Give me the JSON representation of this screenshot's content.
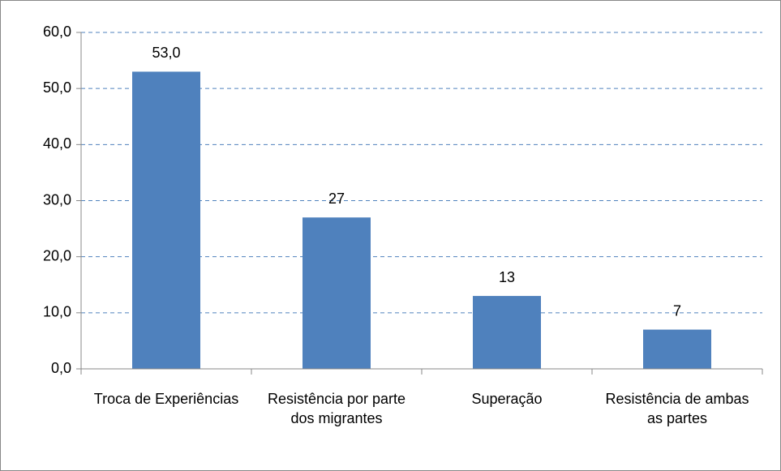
{
  "chart_data": {
    "type": "bar",
    "categories": [
      "Troca de Experiências",
      "Resistência por parte dos migrantes",
      "Superação",
      "Resistência de ambas as partes"
    ],
    "values": [
      53,
      27,
      13,
      7
    ],
    "value_labels": [
      "53,0",
      "27",
      "13",
      "7"
    ],
    "color": "#4f81bd",
    "ylim": [
      0,
      60
    ],
    "yticks": [
      {
        "value": 0,
        "label": "0,0"
      },
      {
        "value": 10,
        "label": "10,0"
      },
      {
        "value": 20,
        "label": "20,0"
      },
      {
        "value": 30,
        "label": "30,0"
      },
      {
        "value": 40,
        "label": "40,0"
      },
      {
        "value": 50,
        "label": "50,0"
      },
      {
        "value": 60,
        "label": "60,0"
      }
    ],
    "grid": true
  }
}
